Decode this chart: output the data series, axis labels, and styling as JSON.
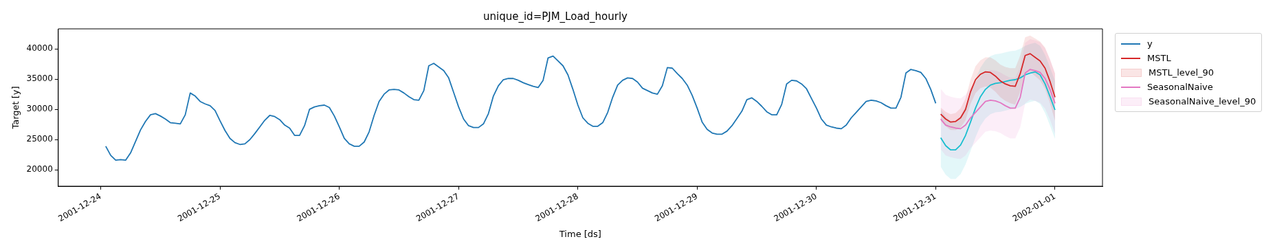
{
  "chart_data": {
    "type": "line",
    "title": "unique_id=PJM_Load_hourly",
    "xlabel": "Time [ds]",
    "ylabel": "Target [y]",
    "annotations": [
      "MSTL_level_90",
      "SeasonalNaive_level_90"
    ],
    "x": [
      "2001-12-31T01:00",
      "2001-12-31T02:00",
      "2001-12-31T03:00",
      "2001-12-31T04:00",
      "2001-12-31T05:00",
      "2001-12-31T06:00",
      "2001-12-31T07:00",
      "2001-12-31T08:00",
      "2001-12-31T09:00",
      "2001-12-31T10:00",
      "2001-12-31T11:00",
      "2001-12-31T12:00",
      "2001-12-31T13:00",
      "2001-12-31T14:00",
      "2001-12-31T15:00",
      "2001-12-31T16:00",
      "2001-12-31T17:00",
      "2001-12-31T18:00",
      "2001-12-31T19:00",
      "2001-12-31T20:00",
      "2001-12-31T21:00",
      "2001-12-31T22:00",
      "2001-12-31T23:00",
      "2002-01-01T00:00"
    ],
    "xlim": [
      "2001-12-23T15:27",
      "2002-01-01T09:33"
    ],
    "xticks": [
      "2001-12-24",
      "2001-12-25",
      "2001-12-26",
      "2001-12-27",
      "2001-12-28",
      "2001-12-29",
      "2001-12-30",
      "2001-12-31",
      "2002-01-01"
    ],
    "ylim": [
      17300,
      43300
    ],
    "yticks": [
      20000,
      25000,
      30000,
      35000,
      40000
    ],
    "grid": false,
    "legend": "right",
    "series": [
      {
        "name": "y",
        "type": "line",
        "color": "#1f77b4",
        "x": [
          "2001-12-24T01:00",
          "2001-12-24T02:00",
          "2001-12-24T03:00",
          "2001-12-24T04:00",
          "2001-12-24T05:00",
          "2001-12-24T06:00",
          "2001-12-24T07:00",
          "2001-12-24T08:00",
          "2001-12-24T09:00",
          "2001-12-24T10:00",
          "2001-12-24T11:00",
          "2001-12-24T12:00",
          "2001-12-24T13:00",
          "2001-12-24T14:00",
          "2001-12-24T15:00",
          "2001-12-24T16:00",
          "2001-12-24T17:00",
          "2001-12-24T18:00",
          "2001-12-24T19:00",
          "2001-12-24T20:00",
          "2001-12-24T21:00",
          "2001-12-24T22:00",
          "2001-12-24T23:00",
          "2001-12-25T00:00",
          "2001-12-25T01:00",
          "2001-12-25T02:00",
          "2001-12-25T03:00",
          "2001-12-25T04:00",
          "2001-12-25T05:00",
          "2001-12-25T06:00",
          "2001-12-25T07:00",
          "2001-12-25T08:00",
          "2001-12-25T09:00",
          "2001-12-25T10:00",
          "2001-12-25T11:00",
          "2001-12-25T12:00",
          "2001-12-25T13:00",
          "2001-12-25T14:00",
          "2001-12-25T15:00",
          "2001-12-25T16:00",
          "2001-12-25T17:00",
          "2001-12-25T18:00",
          "2001-12-25T19:00",
          "2001-12-25T20:00",
          "2001-12-25T21:00",
          "2001-12-25T22:00",
          "2001-12-25T23:00",
          "2001-12-26T00:00",
          "2001-12-26T01:00",
          "2001-12-26T02:00",
          "2001-12-26T03:00",
          "2001-12-26T04:00",
          "2001-12-26T05:00",
          "2001-12-26T06:00",
          "2001-12-26T07:00",
          "2001-12-26T08:00",
          "2001-12-26T09:00",
          "2001-12-26T10:00",
          "2001-12-26T11:00",
          "2001-12-26T12:00",
          "2001-12-26T13:00",
          "2001-12-26T14:00",
          "2001-12-26T15:00",
          "2001-12-26T16:00",
          "2001-12-26T17:00",
          "2001-12-26T18:00",
          "2001-12-26T19:00",
          "2001-12-26T20:00",
          "2001-12-26T21:00",
          "2001-12-26T22:00",
          "2001-12-26T23:00",
          "2001-12-27T00:00",
          "2001-12-27T01:00",
          "2001-12-27T02:00",
          "2001-12-27T03:00",
          "2001-12-27T04:00",
          "2001-12-27T05:00",
          "2001-12-27T06:00",
          "2001-12-27T07:00",
          "2001-12-27T08:00",
          "2001-12-27T09:00",
          "2001-12-27T10:00",
          "2001-12-27T11:00",
          "2001-12-27T12:00",
          "2001-12-27T13:00",
          "2001-12-27T14:00",
          "2001-12-27T15:00",
          "2001-12-27T16:00",
          "2001-12-27T17:00",
          "2001-12-27T18:00",
          "2001-12-27T19:00",
          "2001-12-27T20:00",
          "2001-12-27T21:00",
          "2001-12-27T22:00",
          "2001-12-27T23:00",
          "2001-12-28T00:00",
          "2001-12-28T01:00",
          "2001-12-28T02:00",
          "2001-12-28T03:00",
          "2001-12-28T04:00",
          "2001-12-28T05:00",
          "2001-12-28T06:00",
          "2001-12-28T07:00",
          "2001-12-28T08:00",
          "2001-12-28T09:00",
          "2001-12-28T10:00",
          "2001-12-28T11:00",
          "2001-12-28T12:00",
          "2001-12-28T13:00",
          "2001-12-28T14:00",
          "2001-12-28T15:00",
          "2001-12-28T16:00",
          "2001-12-28T17:00",
          "2001-12-28T18:00",
          "2001-12-28T19:00",
          "2001-12-28T20:00",
          "2001-12-28T21:00",
          "2001-12-28T22:00",
          "2001-12-28T23:00",
          "2001-12-29T00:00",
          "2001-12-29T01:00",
          "2001-12-29T02:00",
          "2001-12-29T03:00",
          "2001-12-29T04:00",
          "2001-12-29T05:00",
          "2001-12-29T06:00",
          "2001-12-29T07:00",
          "2001-12-29T08:00",
          "2001-12-29T09:00",
          "2001-12-29T10:00",
          "2001-12-29T11:00",
          "2001-12-29T12:00",
          "2001-12-29T13:00",
          "2001-12-29T14:00",
          "2001-12-29T15:00",
          "2001-12-29T16:00",
          "2001-12-29T17:00",
          "2001-12-29T18:00",
          "2001-12-29T19:00",
          "2001-12-29T20:00",
          "2001-12-29T21:00",
          "2001-12-29T22:00",
          "2001-12-29T23:00",
          "2001-12-30T00:00",
          "2001-12-30T01:00",
          "2001-12-30T02:00",
          "2001-12-30T03:00",
          "2001-12-30T04:00",
          "2001-12-30T05:00",
          "2001-12-30T06:00",
          "2001-12-30T07:00",
          "2001-12-30T08:00",
          "2001-12-30T09:00",
          "2001-12-30T10:00",
          "2001-12-30T11:00",
          "2001-12-30T12:00",
          "2001-12-30T13:00",
          "2001-12-30T14:00",
          "2001-12-30T15:00",
          "2001-12-30T16:00",
          "2001-12-30T17:00",
          "2001-12-30T18:00",
          "2001-12-30T19:00",
          "2001-12-30T20:00",
          "2001-12-30T21:00",
          "2001-12-30T22:00",
          "2001-12-30T23:00",
          "2001-12-31T00:00"
        ],
        "values": [
          23900,
          22400,
          21600,
          21700,
          21600,
          22800,
          24700,
          26600,
          28000,
          29100,
          29300,
          28900,
          28400,
          27800,
          27700,
          27600,
          29100,
          32700,
          32200,
          31300,
          30900,
          30600,
          29800,
          28100,
          26500,
          25200,
          24500,
          24200,
          24300,
          25000,
          26000,
          27100,
          28200,
          29000,
          28800,
          28300,
          27400,
          26900,
          25700,
          25700,
          27300,
          30000,
          30400,
          30600,
          30700,
          30300,
          28900,
          27100,
          25200,
          24300,
          23900,
          23900,
          24600,
          26300,
          29000,
          31300,
          32500,
          33200,
          33300,
          33200,
          32700,
          32100,
          31600,
          31500,
          33100,
          37200,
          37600,
          37000,
          36400,
          35200,
          32800,
          30400,
          28400,
          27300,
          27000,
          27000,
          27600,
          29300,
          32200,
          33900,
          34900,
          35100,
          35100,
          34800,
          34400,
          34100,
          33800,
          33600,
          34800,
          38500,
          38800,
          38000,
          37200,
          35700,
          33300,
          30700,
          28600,
          27700,
          27200,
          27200,
          27800,
          29500,
          32000,
          34000,
          34800,
          35200,
          35100,
          34500,
          33500,
          33100,
          32700,
          32500,
          33900,
          36900,
          36800,
          35900,
          35100,
          34000,
          32300,
          30200,
          27900,
          26700,
          26100,
          25900,
          25900,
          26400,
          27300,
          28500,
          29700,
          31600,
          31900,
          31300,
          30500,
          29600,
          29100,
          29100,
          30800,
          34200,
          34800,
          34700,
          34200,
          33400,
          31800,
          30200,
          28400,
          27400,
          27100,
          26900,
          26800,
          27400,
          28600,
          29500,
          30400,
          31300,
          31500,
          31400,
          31100,
          30600,
          30200,
          30200,
          32000,
          36000,
          36600,
          36400,
          36100,
          35100,
          33300,
          31000
        ]
      },
      {
        "name": "MSTL",
        "type": "line",
        "color": "#d62728",
        "values": [
          29200,
          28400,
          27900,
          28000,
          28600,
          30000,
          32900,
          34900,
          35800,
          36200,
          36100,
          35500,
          34700,
          34200,
          33900,
          33800,
          35900,
          38900,
          39200,
          38600,
          38000,
          36800,
          34600,
          32000
        ],
        "lower": [
          28100,
          27200,
          26600,
          26600,
          27000,
          28200,
          30900,
          32700,
          33500,
          33800,
          33600,
          32900,
          32000,
          31400,
          31000,
          30800,
          32900,
          35900,
          36200,
          35500,
          34800,
          33400,
          31000,
          28100
        ],
        "upper": [
          30300,
          29600,
          29200,
          29400,
          30200,
          31800,
          34900,
          37100,
          38100,
          38600,
          38600,
          38100,
          37400,
          37000,
          36800,
          36800,
          38900,
          41900,
          42200,
          41700,
          41200,
          40200,
          38200,
          35900
        ]
      },
      {
        "name": "SeasonalNaive",
        "type": "line",
        "color": "#e377c2",
        "values": [
          28400,
          27400,
          27100,
          26900,
          26800,
          27400,
          28600,
          29500,
          30400,
          31300,
          31500,
          31400,
          31100,
          30600,
          30200,
          30200,
          32000,
          36000,
          36600,
          36400,
          36100,
          35100,
          33300,
          31000
        ],
        "lower": [
          23400,
          22400,
          22100,
          21900,
          21800,
          22400,
          23600,
          24500,
          25400,
          26300,
          26500,
          26400,
          26100,
          25600,
          25200,
          25200,
          27000,
          31000,
          31600,
          31400,
          31100,
          30100,
          28300,
          26000
        ],
        "upper": [
          33400,
          32400,
          32100,
          31900,
          31800,
          32400,
          33600,
          34500,
          35400,
          36300,
          36500,
          36400,
          36100,
          35600,
          35200,
          35200,
          37000,
          41000,
          41600,
          41400,
          41100,
          40100,
          38300,
          36000
        ]
      },
      {
        "type": "line",
        "color": "#17becf",
        "values": [
          25300,
          24000,
          23300,
          23300,
          24100,
          25700,
          27900,
          30200,
          32100,
          33300,
          34000,
          34300,
          34400,
          34600,
          34800,
          34900,
          35200,
          35700,
          36000,
          36200,
          35700,
          34200,
          32100,
          29900
        ],
        "lower": [
          20500,
          19200,
          18500,
          18500,
          19300,
          20900,
          23100,
          25400,
          27300,
          28500,
          29200,
          29500,
          29600,
          29800,
          30000,
          30100,
          30400,
          30900,
          31200,
          31400,
          30900,
          29400,
          27300,
          25100
        ],
        "upper": [
          30100,
          28800,
          28100,
          28100,
          28900,
          30500,
          32700,
          35000,
          36900,
          38100,
          38800,
          39100,
          39200,
          39400,
          39600,
          39700,
          40000,
          40500,
          40800,
          41000,
          40500,
          39000,
          36900,
          34700
        ]
      }
    ]
  }
}
